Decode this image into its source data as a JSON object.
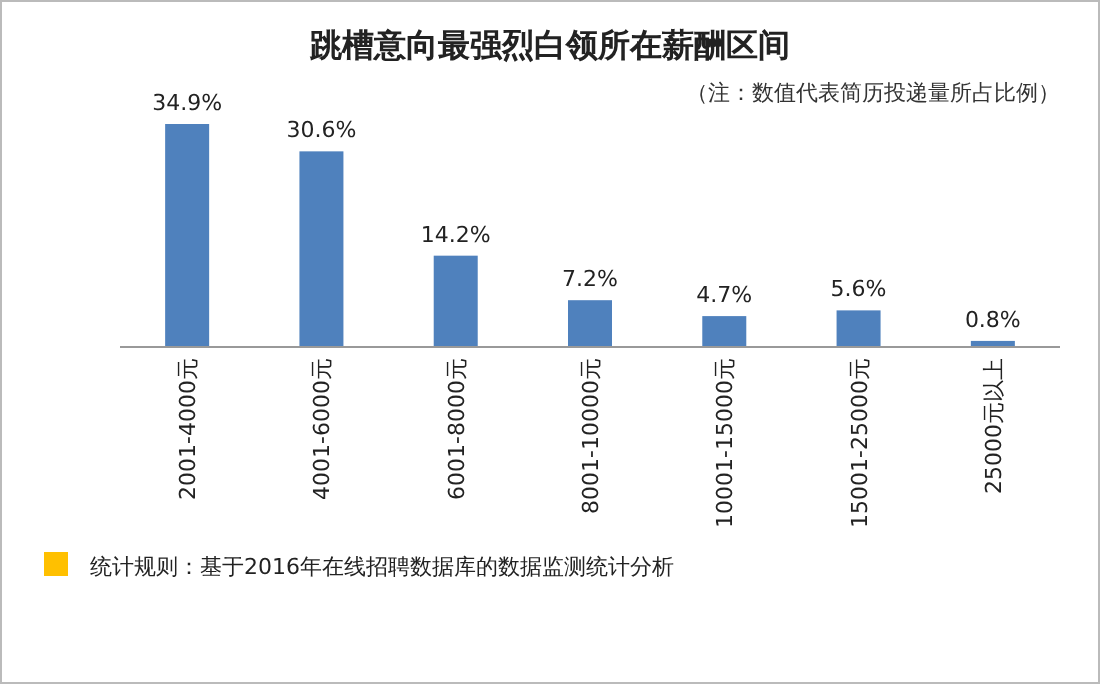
{
  "chart_data": {
    "type": "bar",
    "title": "跳槽意向最强烈白领所在薪酬区间",
    "subtitle": "（注：数值代表简历投递量所占比例）",
    "categories": [
      "2001-4000元",
      "4001-6000元",
      "6001-8000元",
      "8001-10000元",
      "10001-15000元",
      "15001-25000元",
      "25000元以上"
    ],
    "values": [
      34.9,
      30.6,
      14.2,
      7.2,
      4.7,
      5.6,
      0.8
    ],
    "value_labels": [
      "34.9%",
      "30.6%",
      "14.2%",
      "7.2%",
      "4.7%",
      "5.6%",
      "0.8%"
    ],
    "color": "#4f81bd",
    "annotations": [
      "统计规则：基于2016年在线招聘数据库的数据监测统计分析"
    ]
  }
}
